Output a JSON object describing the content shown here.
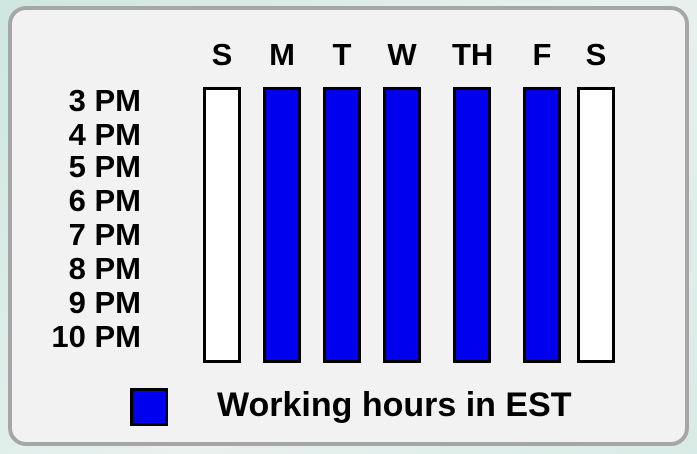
{
  "chart_data": {
    "type": "table",
    "title": "",
    "days": [
      "S",
      "M",
      "T",
      "W",
      "TH",
      "F",
      "S"
    ],
    "times": [
      "3 PM",
      "4 PM",
      "5 PM",
      "6 PM",
      "7 PM",
      "8 PM",
      "9 PM",
      "10 PM"
    ],
    "working": [
      false,
      true,
      true,
      true,
      true,
      true,
      false
    ],
    "legend": {
      "label": "Working hours in EST",
      "color": "#0000ee"
    },
    "colors": {
      "working": "#0000ee",
      "off": "#ffffff",
      "border": "#000000"
    }
  }
}
